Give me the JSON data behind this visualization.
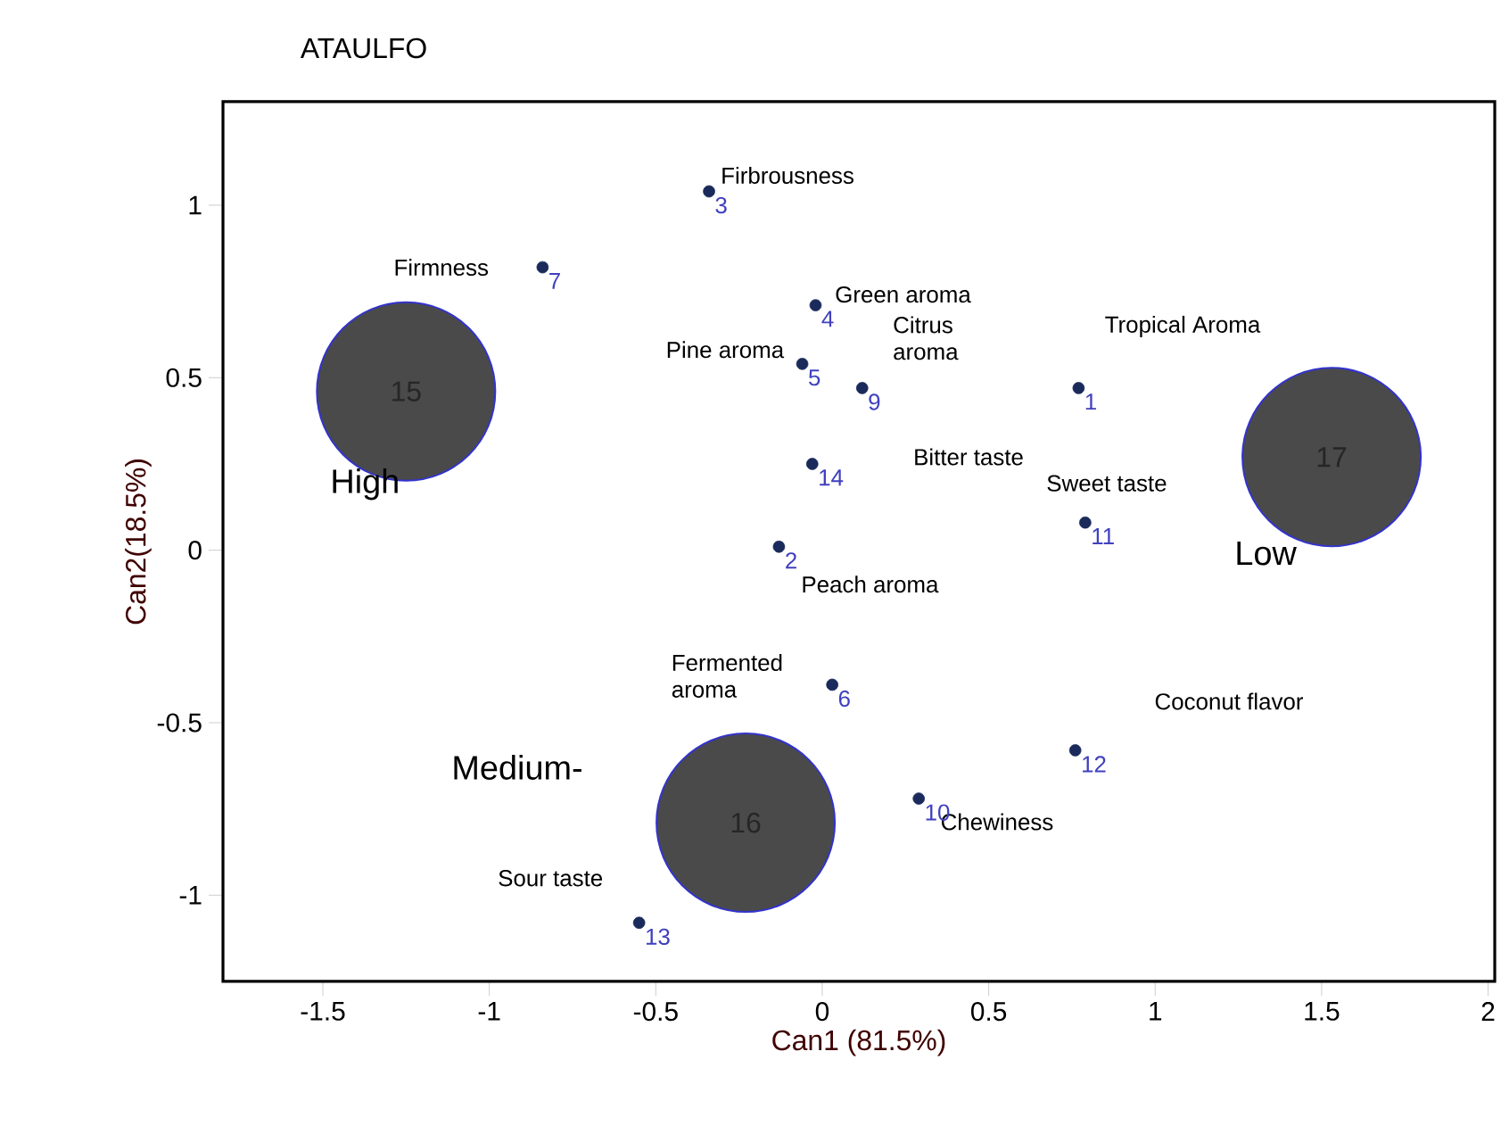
{
  "chart_data": {
    "type": "scatter",
    "title": "ATAULFO",
    "xlabel": "Can1 (81.5%)",
    "ylabel": "Can2(18.5%)",
    "xlim": [
      -1.8,
      2.02
    ],
    "ylim": [
      -1.25,
      1.3
    ],
    "xticks": [
      -1.5,
      -1,
      -0.5,
      0,
      0.5,
      1,
      1.5,
      2
    ],
    "yticks": [
      -1,
      -0.5,
      0,
      0.5,
      1
    ],
    "grid": false,
    "series": [
      {
        "color": "#1a2a5a",
        "x": [
          -0.34,
          -0.84,
          -0.02,
          -0.06,
          0.12,
          0.77,
          -0.03,
          0.79,
          -0.13,
          0.03,
          0.76,
          0.29,
          -0.55
        ],
        "values": [
          1.04,
          0.82,
          0.71,
          0.54,
          0.47,
          0.47,
          0.25,
          0.08,
          0.01,
          -0.39,
          -0.58,
          -0.72,
          -1.08
        ]
      },
      {
        "type": "bubble",
        "color": "#4a4a4a",
        "x": [
          -1.25,
          1.53,
          -0.23
        ],
        "values": [
          0.46,
          0.27,
          -0.79
        ],
        "sizes": [
          1,
          1,
          1
        ]
      }
    ],
    "annotations": [
      {
        "text": "Firbrousness",
        "x": -0.34,
        "y": 1.04
      },
      {
        "text": "Firmness",
        "x": -0.84,
        "y": 0.82
      },
      {
        "text": "Green aroma",
        "x": -0.02,
        "y": 0.71
      },
      {
        "text": "Citrus aroma",
        "x": 0.12,
        "y": 0.47
      },
      {
        "text": "Pine aroma",
        "x": -0.06,
        "y": 0.54
      },
      "Tropical Aroma",
      "Bitter taste",
      {
        "text": "Sweet taste",
        "x": 0.79,
        "y": 0.08
      },
      {
        "text": "Peach aroma",
        "x": -0.13,
        "y": 0.01
      },
      {
        "text": "Fermented aroma",
        "x": 0.03,
        "y": -0.39
      },
      "Coconut flavor",
      {
        "text": "Chewiness",
        "x": 0.29,
        "y": -0.72
      },
      {
        "text": "Sour taste",
        "x": -0.55,
        "y": -1.08
      },
      {
        "text": "High",
        "x": -1.25,
        "y": 0.46
      },
      {
        "text": "Low",
        "x": 1.53,
        "y": 0.27
      },
      "Medium-",
      {
        "text": "3",
        "x": -0.34,
        "y": 1.04
      },
      {
        "text": "7",
        "x": -0.84,
        "y": 0.82
      },
      {
        "text": "4",
        "x": -0.02,
        "y": 0.71
      },
      {
        "text": "9",
        "x": 0.12,
        "y": 0.47
      },
      {
        "text": "5",
        "x": -0.06,
        "y": 0.54
      },
      {
        "text": "1",
        "x": 0.77,
        "y": 0.47
      },
      {
        "text": "14",
        "x": -0.03,
        "y": 0.25
      },
      {
        "text": "11",
        "x": 0.79,
        "y": 0.08
      },
      {
        "text": "2",
        "x": -0.13,
        "y": 0.01
      },
      {
        "text": "6",
        "x": 0.03,
        "y": -0.39
      },
      {
        "text": "12",
        "x": 0.76,
        "y": -0.58
      },
      {
        "text": "10",
        "x": 0.29,
        "y": -0.72
      },
      {
        "text": "13",
        "x": -0.55,
        "y": -1.08
      },
      {
        "text": "15",
        "x": -1.25,
        "y": 0.46
      },
      {
        "text": "17",
        "x": 1.53,
        "y": 0.27
      },
      {
        "text": "16",
        "x": -0.23,
        "y": -0.79
      }
    ]
  }
}
